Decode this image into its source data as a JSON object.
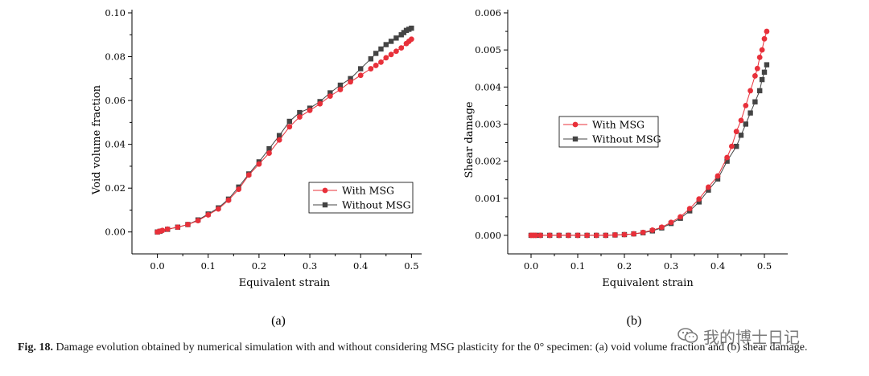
{
  "figure": {
    "panel_labels": [
      "(a)",
      "(b)"
    ],
    "caption_label": "Fig. 18.",
    "caption_text": "Damage evolution obtained by numerical simulation with and without considering MSG plasticity for the 0° specimen: (a) void volume fraction and (b) shear damage.",
    "watermark_text": "我的博士日记",
    "watermark_icon": "wechat-icon"
  },
  "colors": {
    "with_msg": "#e8303a",
    "without_msg": "#444444",
    "axis": "#000000"
  },
  "chart_data": [
    {
      "type": "line",
      "panel": "(a)",
      "xlabel": "Equivalent strain",
      "ylabel": "Void volume fraction",
      "xlim": [
        -0.05,
        0.52
      ],
      "ylim": [
        -0.01,
        0.1
      ],
      "xticks": [
        0.0,
        0.1,
        0.2,
        0.3,
        0.4,
        0.5
      ],
      "xtick_labels": [
        "0.0",
        "0.1",
        "0.2",
        "0.3",
        "0.4",
        "0.5"
      ],
      "yticks": [
        0.0,
        0.02,
        0.04,
        0.06,
        0.08,
        0.1
      ],
      "ytick_labels": [
        "0.00",
        "0.02",
        "0.04",
        "0.06",
        "0.08",
        "0.10"
      ],
      "legend_position": "lower-right",
      "series": [
        {
          "name": "With MSG",
          "marker": "circle",
          "color": "#e8303a",
          "x": [
            0.0,
            0.003,
            0.006,
            0.01,
            0.02,
            0.04,
            0.06,
            0.08,
            0.1,
            0.12,
            0.14,
            0.16,
            0.18,
            0.2,
            0.22,
            0.24,
            0.26,
            0.28,
            0.3,
            0.32,
            0.34,
            0.36,
            0.38,
            0.4,
            0.42,
            0.43,
            0.44,
            0.45,
            0.46,
            0.47,
            0.48,
            0.49,
            0.495,
            0.5
          ],
          "y": [
            0.0,
            0.0002,
            0.0004,
            0.0007,
            0.0013,
            0.0022,
            0.0034,
            0.0052,
            0.0078,
            0.0105,
            0.0145,
            0.0195,
            0.026,
            0.031,
            0.036,
            0.042,
            0.048,
            0.0525,
            0.0555,
            0.0585,
            0.062,
            0.065,
            0.0685,
            0.0715,
            0.0745,
            0.076,
            0.0775,
            0.0795,
            0.081,
            0.0825,
            0.084,
            0.086,
            0.087,
            0.088
          ]
        },
        {
          "name": "Without MSG",
          "marker": "square",
          "color": "#444444",
          "x": [
            0.0,
            0.005,
            0.02,
            0.04,
            0.06,
            0.08,
            0.1,
            0.12,
            0.14,
            0.16,
            0.18,
            0.2,
            0.22,
            0.24,
            0.26,
            0.28,
            0.3,
            0.32,
            0.34,
            0.36,
            0.38,
            0.4,
            0.42,
            0.43,
            0.44,
            0.45,
            0.46,
            0.47,
            0.48,
            0.485,
            0.49,
            0.495,
            0.5
          ],
          "y": [
            0.0,
            0.0003,
            0.0012,
            0.0022,
            0.0034,
            0.0055,
            0.0082,
            0.011,
            0.015,
            0.0205,
            0.0265,
            0.032,
            0.038,
            0.044,
            0.0505,
            0.0545,
            0.0565,
            0.0595,
            0.0635,
            0.067,
            0.07,
            0.0745,
            0.079,
            0.0815,
            0.0835,
            0.0855,
            0.087,
            0.0885,
            0.09,
            0.091,
            0.092,
            0.0925,
            0.093
          ]
        }
      ]
    },
    {
      "type": "line",
      "panel": "(b)",
      "xlabel": "Equivalent strain",
      "ylabel": "Shear damage",
      "xlim": [
        -0.05,
        0.55
      ],
      "ylim": [
        -0.0005,
        0.006
      ],
      "xticks": [
        0.0,
        0.1,
        0.2,
        0.3,
        0.4,
        0.5
      ],
      "xtick_labels": [
        "0.0",
        "0.1",
        "0.2",
        "0.3",
        "0.4",
        "0.5"
      ],
      "yticks": [
        0.0,
        0.001,
        0.002,
        0.003,
        0.004,
        0.005,
        0.006
      ],
      "ytick_labels": [
        "0.000",
        "0.001",
        "0.002",
        "0.003",
        "0.004",
        "0.005",
        "0.006"
      ],
      "legend_position": "middle-left",
      "series": [
        {
          "name": "With MSG",
          "marker": "circle",
          "color": "#e8303a",
          "x": [
            0.0,
            0.005,
            0.01,
            0.02,
            0.04,
            0.06,
            0.08,
            0.1,
            0.12,
            0.14,
            0.16,
            0.18,
            0.2,
            0.22,
            0.24,
            0.26,
            0.28,
            0.3,
            0.32,
            0.34,
            0.36,
            0.38,
            0.4,
            0.42,
            0.43,
            0.44,
            0.45,
            0.46,
            0.47,
            0.48,
            0.485,
            0.49,
            0.495,
            0.5,
            0.505
          ],
          "y": [
            0.0,
            0.0,
            0.0,
            0.0,
            0.0,
            0.0,
            0.0,
            0.0,
            0.0,
            0.0,
            0.0,
            1e-05,
            2e-05,
            4e-05,
            8e-05,
            0.00014,
            0.00022,
            0.00035,
            0.0005,
            0.00072,
            0.00098,
            0.0013,
            0.0016,
            0.0021,
            0.0024,
            0.0028,
            0.0031,
            0.0035,
            0.0039,
            0.0043,
            0.0045,
            0.0048,
            0.005,
            0.0053,
            0.0055
          ]
        },
        {
          "name": "Without MSG",
          "marker": "square",
          "color": "#444444",
          "x": [
            0.0,
            0.01,
            0.02,
            0.04,
            0.06,
            0.08,
            0.1,
            0.12,
            0.14,
            0.16,
            0.18,
            0.2,
            0.22,
            0.24,
            0.26,
            0.28,
            0.3,
            0.32,
            0.34,
            0.36,
            0.38,
            0.4,
            0.42,
            0.44,
            0.45,
            0.46,
            0.47,
            0.48,
            0.49,
            0.495,
            0.5,
            0.505
          ],
          "y": [
            0.0,
            0.0,
            0.0,
            0.0,
            0.0,
            0.0,
            0.0,
            0.0,
            0.0,
            0.0,
            1e-05,
            2e-05,
            4e-05,
            7e-05,
            0.00012,
            0.0002,
            0.00032,
            0.00046,
            0.00066,
            0.0009,
            0.00122,
            0.00152,
            0.002,
            0.0024,
            0.0027,
            0.003,
            0.0033,
            0.0036,
            0.0039,
            0.0042,
            0.0044,
            0.0046
          ]
        }
      ]
    }
  ]
}
